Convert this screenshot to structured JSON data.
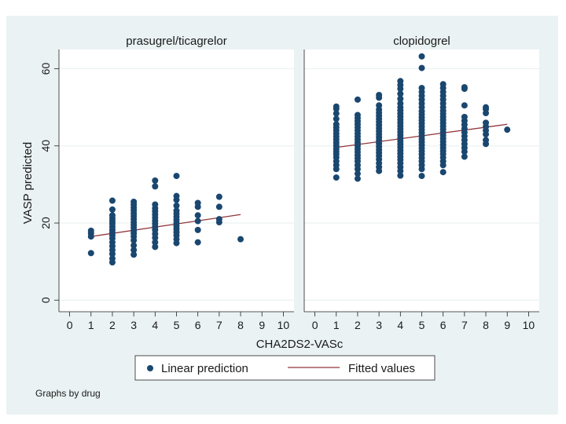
{
  "chart_data": {
    "type": "scatter",
    "ylabel": "VASP predicted",
    "xlabel": "CHA2DS2-VASc",
    "ylim": [
      -3,
      65
    ],
    "xlim": [
      -0.5,
      10.5
    ],
    "yticks": [
      0,
      20,
      40,
      60
    ],
    "xticks": [
      0,
      1,
      2,
      3,
      4,
      5,
      6,
      7,
      8,
      9,
      10
    ],
    "grid": "horizontal",
    "legend": {
      "placement": "bottom",
      "items": [
        "Linear prediction",
        "Fitted values"
      ]
    },
    "note": "Graphs by drug",
    "colors": {
      "points": "#1a476f",
      "fit": "#90353b",
      "strip": "#eaf2f3",
      "background": "#eaf2f3",
      "plot_bg": "#ffffff",
      "grid": "#eaf2f3"
    },
    "panels": [
      {
        "title": "prasugrel/ticagrelor",
        "points": [
          [
            1,
            12.2
          ],
          [
            1,
            16.5
          ],
          [
            1,
            17.3
          ],
          [
            1,
            18.0
          ],
          [
            2,
            9.8
          ],
          [
            2,
            10.8
          ],
          [
            2,
            12.0
          ],
          [
            2,
            13.0
          ],
          [
            2,
            14.0
          ],
          [
            2,
            15.0
          ],
          [
            2,
            16.0
          ],
          [
            2,
            16.8
          ],
          [
            2,
            17.5
          ],
          [
            2,
            18.2
          ],
          [
            2,
            19.0
          ],
          [
            2,
            19.8
          ],
          [
            2,
            20.5
          ],
          [
            2,
            21.2
          ],
          [
            2,
            22.0
          ],
          [
            2,
            23.5
          ],
          [
            2,
            25.8
          ],
          [
            3,
            11.8
          ],
          [
            3,
            13.0
          ],
          [
            3,
            14.2
          ],
          [
            3,
            15.5
          ],
          [
            3,
            16.5
          ],
          [
            3,
            17.3
          ],
          [
            3,
            18.0
          ],
          [
            3,
            18.8
          ],
          [
            3,
            19.5
          ],
          [
            3,
            20.2
          ],
          [
            3,
            21.0
          ],
          [
            3,
            21.8
          ],
          [
            3,
            22.5
          ],
          [
            3,
            23.3
          ],
          [
            3,
            24.0
          ],
          [
            3,
            24.8
          ],
          [
            3,
            25.5
          ],
          [
            4,
            13.8
          ],
          [
            4,
            15.0
          ],
          [
            4,
            16.2
          ],
          [
            4,
            17.2
          ],
          [
            4,
            18.2
          ],
          [
            4,
            19.0
          ],
          [
            4,
            19.8
          ],
          [
            4,
            20.6
          ],
          [
            4,
            21.4
          ],
          [
            4,
            22.2
          ],
          [
            4,
            23.0
          ],
          [
            4,
            23.8
          ],
          [
            4,
            24.8
          ],
          [
            4,
            29.5
          ],
          [
            4,
            31.0
          ],
          [
            5,
            14.8
          ],
          [
            5,
            15.8
          ],
          [
            5,
            16.8
          ],
          [
            5,
            17.6
          ],
          [
            5,
            18.4
          ],
          [
            5,
            19.2
          ],
          [
            5,
            20.0
          ],
          [
            5,
            20.8
          ],
          [
            5,
            21.6
          ],
          [
            5,
            22.4
          ],
          [
            5,
            23.2
          ],
          [
            5,
            24.5
          ],
          [
            5,
            26.0
          ],
          [
            5,
            27.0
          ],
          [
            5,
            32.2
          ],
          [
            6,
            15.0
          ],
          [
            6,
            18.2
          ],
          [
            6,
            20.5
          ],
          [
            6,
            22.0
          ],
          [
            6,
            24.2
          ],
          [
            6,
            25.2
          ],
          [
            7,
            20.2
          ],
          [
            7,
            21.0
          ],
          [
            7,
            24.2
          ],
          [
            7,
            26.8
          ],
          [
            8,
            15.8
          ]
        ],
        "fit": {
          "x": [
            1,
            8
          ],
          "y": [
            16.5,
            22.2
          ]
        }
      },
      {
        "title": "clopidogrel",
        "points": [
          [
            1,
            31.8
          ],
          [
            1,
            34.0
          ],
          [
            1,
            35.0
          ],
          [
            1,
            36.0
          ],
          [
            1,
            37.0
          ],
          [
            1,
            37.8
          ],
          [
            1,
            38.5
          ],
          [
            1,
            39.2
          ],
          [
            1,
            40.0
          ],
          [
            1,
            40.8
          ],
          [
            1,
            41.6
          ],
          [
            1,
            42.4
          ],
          [
            1,
            43.2
          ],
          [
            1,
            44.0
          ],
          [
            1,
            44.8
          ],
          [
            1,
            45.6
          ],
          [
            1,
            47.0
          ],
          [
            1,
            48.4
          ],
          [
            1,
            49.6
          ],
          [
            1,
            50.2
          ],
          [
            2,
            31.5
          ],
          [
            2,
            32.8
          ],
          [
            2,
            34.0
          ],
          [
            2,
            35.0
          ],
          [
            2,
            36.0
          ],
          [
            2,
            36.8
          ],
          [
            2,
            37.6
          ],
          [
            2,
            38.4
          ],
          [
            2,
            39.2
          ],
          [
            2,
            40.0
          ],
          [
            2,
            40.8
          ],
          [
            2,
            41.6
          ],
          [
            2,
            42.4
          ],
          [
            2,
            43.2
          ],
          [
            2,
            44.0
          ],
          [
            2,
            44.8
          ],
          [
            2,
            45.6
          ],
          [
            2,
            46.4
          ],
          [
            2,
            47.2
          ],
          [
            2,
            48.0
          ],
          [
            2,
            52.0
          ],
          [
            3,
            33.5
          ],
          [
            3,
            34.5
          ],
          [
            3,
            35.5
          ],
          [
            3,
            36.5
          ],
          [
            3,
            37.4
          ],
          [
            3,
            38.2
          ],
          [
            3,
            39.0
          ],
          [
            3,
            39.8
          ],
          [
            3,
            40.6
          ],
          [
            3,
            41.4
          ],
          [
            3,
            42.2
          ],
          [
            3,
            43.0
          ],
          [
            3,
            43.8
          ],
          [
            3,
            44.6
          ],
          [
            3,
            45.4
          ],
          [
            3,
            46.2
          ],
          [
            3,
            47.0
          ],
          [
            3,
            47.8
          ],
          [
            3,
            48.6
          ],
          [
            3,
            49.4
          ],
          [
            3,
            50.5
          ],
          [
            3,
            52.5
          ],
          [
            3,
            53.2
          ],
          [
            4,
            32.3
          ],
          [
            4,
            33.5
          ],
          [
            4,
            34.5
          ],
          [
            4,
            35.5
          ],
          [
            4,
            36.4
          ],
          [
            4,
            37.2
          ],
          [
            4,
            38.0
          ],
          [
            4,
            38.8
          ],
          [
            4,
            39.6
          ],
          [
            4,
            40.4
          ],
          [
            4,
            41.2
          ],
          [
            4,
            42.0
          ],
          [
            4,
            42.8
          ],
          [
            4,
            43.6
          ],
          [
            4,
            44.4
          ],
          [
            4,
            45.2
          ],
          [
            4,
            46.0
          ],
          [
            4,
            46.8
          ],
          [
            4,
            47.6
          ],
          [
            4,
            48.4
          ],
          [
            4,
            49.2
          ],
          [
            4,
            50.0
          ],
          [
            4,
            51.0
          ],
          [
            4,
            52.2
          ],
          [
            4,
            53.5
          ],
          [
            4,
            54.8
          ],
          [
            4,
            55.8
          ],
          [
            4,
            56.8
          ],
          [
            5,
            32.2
          ],
          [
            5,
            34.0
          ],
          [
            5,
            35.0
          ],
          [
            5,
            36.0
          ],
          [
            5,
            36.9
          ],
          [
            5,
            37.8
          ],
          [
            5,
            38.6
          ],
          [
            5,
            39.4
          ],
          [
            5,
            40.2
          ],
          [
            5,
            41.0
          ],
          [
            5,
            41.8
          ],
          [
            5,
            42.6
          ],
          [
            5,
            43.4
          ],
          [
            5,
            44.2
          ],
          [
            5,
            45.0
          ],
          [
            5,
            45.8
          ],
          [
            5,
            46.6
          ],
          [
            5,
            47.4
          ],
          [
            5,
            48.2
          ],
          [
            5,
            49.0
          ],
          [
            5,
            50.0
          ],
          [
            5,
            51.0
          ],
          [
            5,
            52.0
          ],
          [
            5,
            53.0
          ],
          [
            5,
            54.0
          ],
          [
            5,
            55.0
          ],
          [
            5,
            60.2
          ],
          [
            5,
            63.2
          ],
          [
            6,
            33.2
          ],
          [
            6,
            35.0
          ],
          [
            6,
            36.0
          ],
          [
            6,
            37.0
          ],
          [
            6,
            37.9
          ],
          [
            6,
            38.7
          ],
          [
            6,
            39.5
          ],
          [
            6,
            40.3
          ],
          [
            6,
            41.1
          ],
          [
            6,
            41.9
          ],
          [
            6,
            42.7
          ],
          [
            6,
            43.5
          ],
          [
            6,
            44.3
          ],
          [
            6,
            45.1
          ],
          [
            6,
            45.9
          ],
          [
            6,
            46.7
          ],
          [
            6,
            47.5
          ],
          [
            6,
            48.3
          ],
          [
            6,
            49.1
          ],
          [
            6,
            50.0
          ],
          [
            6,
            51.0
          ],
          [
            6,
            52.0
          ],
          [
            6,
            53.0
          ],
          [
            6,
            54.0
          ],
          [
            6,
            55.0
          ],
          [
            6,
            56.0
          ],
          [
            7,
            37.2
          ],
          [
            7,
            38.5
          ],
          [
            7,
            39.5
          ],
          [
            7,
            40.5
          ],
          [
            7,
            41.5
          ],
          [
            7,
            42.5
          ],
          [
            7,
            43.5
          ],
          [
            7,
            44.5
          ],
          [
            7,
            45.5
          ],
          [
            7,
            46.5
          ],
          [
            7,
            47.5
          ],
          [
            7,
            50.5
          ],
          [
            7,
            54.8
          ],
          [
            7,
            55.2
          ],
          [
            8,
            40.5
          ],
          [
            8,
            41.5
          ],
          [
            8,
            43.0
          ],
          [
            8,
            44.0
          ],
          [
            8,
            45.0
          ],
          [
            8,
            46.0
          ],
          [
            8,
            48.5
          ],
          [
            8,
            49.5
          ],
          [
            8,
            50.0
          ],
          [
            9,
            44.2
          ]
        ],
        "fit": {
          "x": [
            1,
            9
          ],
          "y": [
            39.6,
            45.6
          ]
        }
      }
    ]
  }
}
